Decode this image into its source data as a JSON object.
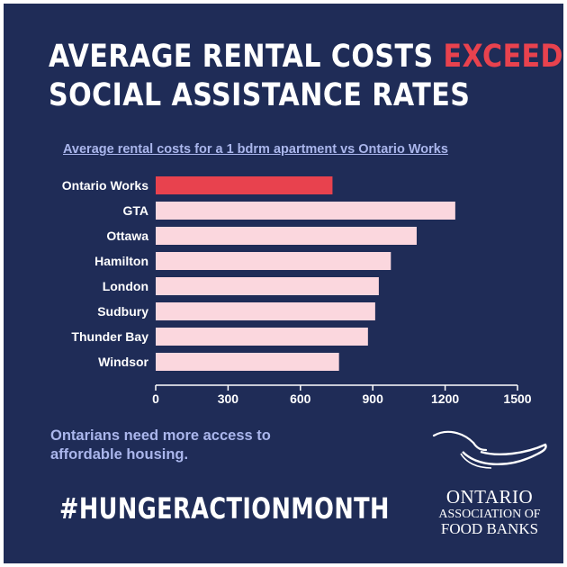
{
  "title": {
    "line1_main": "AVERAGE RENTAL COSTS ",
    "line1_accent": "EXCEED",
    "line2": "SOCIAL ASSISTANCE RATES"
  },
  "colors": {
    "background": "#1f2c57",
    "highlight": "#e8424e",
    "bar": "#fbd7de",
    "accent_text": "#aab6ec"
  },
  "chart_data": {
    "type": "bar",
    "orientation": "horizontal",
    "title": "Average rental costs for a 1 bdrm apartment vs Ontario Works",
    "categories": [
      "Ontario Works",
      "GTA",
      "Ottawa",
      "Hamilton",
      "London",
      "Sudbury",
      "Thunder Bay",
      "Windsor"
    ],
    "values": [
      733,
      1242,
      1082,
      975,
      925,
      910,
      880,
      760
    ],
    "highlight_category": "Ontario Works",
    "xlim": [
      0,
      1500
    ],
    "xticks": [
      0,
      300,
      600,
      900,
      1200,
      1500
    ],
    "grid": false,
    "legend": "none"
  },
  "footer": {
    "tagline": "Ontarians need more access to affordable housing.",
    "hashtag": "#HUNGERACTIONMONTH"
  },
  "logo": {
    "line1": "ONTARIO",
    "line2": "ASSOCIATION OF",
    "line3": "FOOD BANKS"
  }
}
